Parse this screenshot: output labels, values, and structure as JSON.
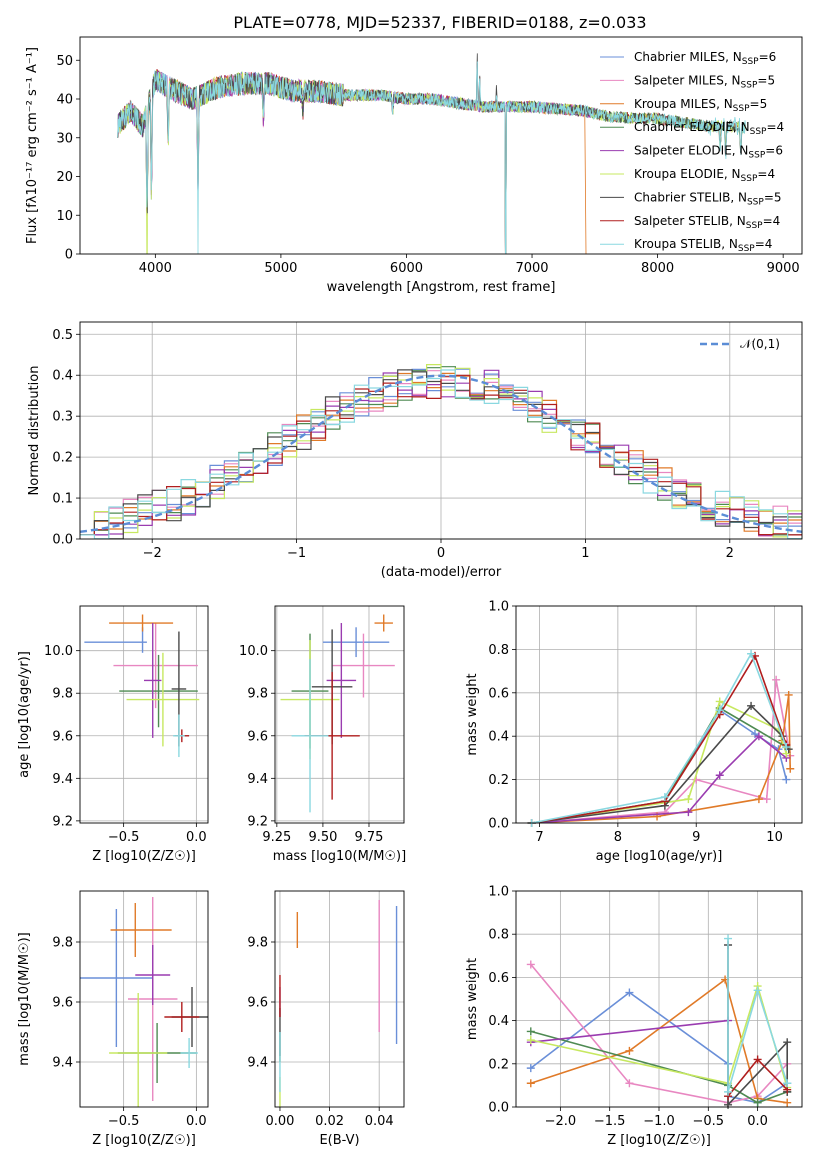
{
  "colors": [
    "#6a8fd8",
    "#e887c1",
    "#e07a28",
    "#4e8a52",
    "#9a3cb0",
    "#c7e860",
    "#4a4a4a",
    "#b01e1e",
    "#8ad8e0"
  ],
  "series_names": [
    "Chabrier MILES",
    "Salpeter MILES",
    "Kroupa MILES",
    "Chabrier ELODIE",
    "Salpeter ELODIE",
    "Kroupa ELODIE",
    "Chabrier STELIB",
    "Salpeter STELIB",
    "Kroupa STELIB"
  ],
  "legend_nssp": [
    "6",
    "5",
    "5",
    "4",
    "6",
    "4",
    "5",
    "4",
    "4"
  ],
  "chart_data": [
    {
      "id": "spectrum",
      "type": "line",
      "title": "PLATE=0778, MJD=52337, FIBERID=0188, z=0.033",
      "xlabel": "wavelength [Angstrom, rest frame]",
      "ylabel": "Flux [fλ10⁻¹⁷ erg cm⁻² s⁻¹ A⁻¹]",
      "xlim": [
        3400,
        9150
      ],
      "ylim": [
        0,
        56
      ],
      "xticks": [
        4000,
        5000,
        6000,
        7000,
        8000,
        9000
      ],
      "yticks": [
        0,
        10,
        20,
        30,
        40,
        50
      ],
      "legend": "upper right",
      "grid": false,
      "continuum": [
        [
          3700,
          33
        ],
        [
          3800,
          37
        ],
        [
          3900,
          33
        ],
        [
          4000,
          45
        ],
        [
          4100,
          43
        ],
        [
          4300,
          40
        ],
        [
          4500,
          43
        ],
        [
          4700,
          44
        ],
        [
          4900,
          44
        ],
        [
          5100,
          42
        ],
        [
          5300,
          42
        ],
        [
          5500,
          41
        ],
        [
          5800,
          41
        ],
        [
          6000,
          40
        ],
        [
          6200,
          40
        ],
        [
          6400,
          39
        ],
        [
          6600,
          38
        ],
        [
          6800,
          38
        ],
        [
          7000,
          38
        ],
        [
          7200,
          37.5
        ],
        [
          7400,
          37
        ],
        [
          7600,
          35.5
        ],
        [
          7800,
          35
        ],
        [
          8000,
          35
        ],
        [
          8200,
          34
        ],
        [
          8400,
          33
        ],
        [
          8600,
          33
        ],
        [
          8700,
          32.5
        ]
      ],
      "absorption_lines": [
        [
          3934,
          30
        ],
        [
          3969,
          28
        ],
        [
          4102,
          15
        ],
        [
          4340,
          25
        ],
        [
          4861,
          10
        ],
        [
          5175,
          5
        ],
        [
          5890,
          4
        ],
        [
          8498,
          6
        ],
        [
          8542,
          8
        ],
        [
          8662,
          7
        ]
      ],
      "emission_lines": [
        [
          6563,
          15
        ],
        [
          6583,
          10
        ],
        [
          6717,
          5
        ]
      ],
      "drops": [
        [
          3934,
          "all"
        ],
        [
          4340,
          "all"
        ],
        [
          6790,
          "all"
        ],
        [
          7420,
          "Kroupa MILES"
        ]
      ]
    },
    {
      "id": "residuals",
      "type": "histogram",
      "xlabel": "(data-model)/error",
      "ylabel": "Normed distribution",
      "xlim": [
        -2.5,
        2.5
      ],
      "ylim": [
        0,
        0.53
      ],
      "xticks": [
        -2,
        -1,
        0,
        1,
        2
      ],
      "yticks": [
        0,
        0.1,
        0.2,
        0.3,
        0.4,
        0.5
      ],
      "grid": true,
      "legend": "upper right",
      "normal_label": "𝒩(0,1)"
    },
    {
      "id": "age_Z",
      "type": "errorbar",
      "xlabel": "Z [log10(Z/Z☉)]",
      "ylabel": "age  [log10(age/yr)]",
      "xlim": [
        -0.8,
        0.08
      ],
      "ylim": [
        9.19,
        10.21
      ],
      "xticks": [
        -0.5,
        0
      ],
      "yticks": [
        9.2,
        9.4,
        9.6,
        9.8,
        10.0
      ],
      "grid": true,
      "points": [
        [
          -0.37,
          10.04,
          0.4,
          0.03,
          0.05,
          0.07
        ],
        [
          -0.28,
          9.93,
          0.29,
          0.29,
          0.2,
          0.2
        ],
        [
          -0.37,
          10.13,
          0.23,
          0.21,
          0.04,
          0.04
        ],
        [
          -0.26,
          9.81,
          0.27,
          0.27,
          0.17,
          0.17
        ],
        [
          -0.3,
          9.86,
          0.06,
          0.06,
          0.27,
          0.27
        ],
        [
          -0.23,
          9.77,
          0.25,
          0.25,
          0.22,
          0.22
        ],
        [
          -0.12,
          9.82,
          0.05,
          0.05,
          0.27,
          0.27
        ],
        [
          -0.1,
          9.6,
          0.05,
          0.05,
          0.03,
          0.03
        ],
        [
          -0.12,
          9.6,
          0.04,
          0.04,
          0.1,
          0.1
        ]
      ]
    },
    {
      "id": "age_mass",
      "type": "errorbar",
      "xlabel": "mass [log10(M/M☉)]",
      "ylabel": "",
      "xlim": [
        9.24,
        9.94
      ],
      "ylim": [
        9.19,
        10.21
      ],
      "xticks": [
        9.25,
        9.5,
        9.75
      ],
      "yticks": [
        9.2,
        9.4,
        9.6,
        9.8,
        10.0
      ],
      "grid": true,
      "points": [
        [
          9.68,
          10.04,
          0.18,
          0.18,
          0.07,
          0.07
        ],
        [
          9.72,
          9.93,
          0.17,
          0.17,
          0.15,
          0.15
        ],
        [
          9.83,
          10.13,
          0.05,
          0.05,
          0.04,
          0.04
        ],
        [
          9.43,
          9.81,
          0.1,
          0.1,
          0.27,
          0.27
        ],
        [
          9.6,
          9.86,
          0.08,
          0.08,
          0.27,
          0.27
        ],
        [
          9.43,
          9.77,
          0.16,
          0.16,
          0.28,
          0.28
        ],
        [
          9.55,
          9.83,
          0.11,
          0.11,
          0.27,
          0.27
        ],
        [
          9.55,
          9.6,
          0.15,
          0.15,
          0.3,
          0.3
        ],
        [
          9.43,
          9.6,
          0.1,
          0.1,
          0.36,
          0.36
        ]
      ]
    },
    {
      "id": "weight_age",
      "type": "line",
      "xlabel": "age  [log10(age/yr)]",
      "ylabel": "mass weight",
      "xlim": [
        6.7,
        10.35
      ],
      "ylim": [
        0,
        1
      ],
      "xticks": [
        7,
        8,
        9,
        10
      ],
      "yticks": [
        0,
        0.2,
        0.4,
        0.6,
        0.8,
        1.0
      ],
      "grid": true,
      "series": [
        [
          [
            6.9,
            0
          ],
          [
            8.6,
            0.1
          ],
          [
            9.3,
            0.52
          ],
          [
            9.75,
            0.41
          ],
          [
            10.05,
            0.34
          ],
          [
            10.15,
            0.2
          ]
        ],
        [
          [
            6.9,
            0
          ],
          [
            8.6,
            0.05
          ],
          [
            9.0,
            0.2
          ],
          [
            9.9,
            0.11
          ],
          [
            10.02,
            0.66
          ],
          [
            10.2,
            0.31
          ]
        ],
        [
          [
            6.9,
            0
          ],
          [
            8.5,
            0.03
          ],
          [
            9.8,
            0.11
          ],
          [
            10.1,
            0.38
          ],
          [
            10.18,
            0.59
          ],
          [
            10.2,
            0.25
          ]
        ],
        [
          [
            6.9,
            0
          ],
          [
            8.6,
            0.1
          ],
          [
            9.3,
            0.53
          ],
          [
            10.15,
            0.35
          ]
        ],
        [
          [
            6.9,
            0
          ],
          [
            8.9,
            0.05
          ],
          [
            9.3,
            0.22
          ],
          [
            9.8,
            0.4
          ],
          [
            10.15,
            0.3
          ]
        ],
        [
          [
            6.9,
            0
          ],
          [
            8.9,
            0.11
          ],
          [
            9.3,
            0.56
          ],
          [
            10.05,
            0.43
          ],
          [
            10.15,
            0.32
          ]
        ],
        [
          [
            6.9,
            0
          ],
          [
            8.6,
            0.08
          ],
          [
            9.7,
            0.54
          ],
          [
            10.1,
            0.4
          ],
          [
            10.18,
            0.34
          ]
        ],
        [
          [
            6.9,
            0
          ],
          [
            8.6,
            0.1
          ],
          [
            9.3,
            0.5
          ],
          [
            9.75,
            0.77
          ],
          [
            10.15,
            0.36
          ]
        ],
        [
          [
            6.9,
            0
          ],
          [
            8.6,
            0.12
          ],
          [
            9.3,
            0.52
          ],
          [
            9.7,
            0.78
          ],
          [
            10.15,
            0.35
          ]
        ]
      ]
    },
    {
      "id": "mass_Z",
      "type": "errorbar",
      "xlabel": "Z [log10(Z/Z☉)]",
      "ylabel": "mass [log10(M/M☉)]",
      "xlim": [
        -0.8,
        0.08
      ],
      "ylim": [
        9.25,
        9.97
      ],
      "xticks": [
        -0.5,
        0
      ],
      "yticks": [
        9.4,
        9.6,
        9.8
      ],
      "grid": true,
      "points": [
        [
          -0.55,
          9.68,
          0.25,
          0.25,
          0.23,
          0.23
        ],
        [
          -0.3,
          9.61,
          0.17,
          0.17,
          0.34,
          0.34
        ],
        [
          -0.42,
          9.84,
          0.17,
          0.25,
          0.09,
          0.09
        ],
        [
          -0.27,
          9.43,
          0.27,
          0.27,
          0.1,
          0.1
        ],
        [
          -0.3,
          9.69,
          0.12,
          0.12,
          0.1,
          0.1
        ],
        [
          -0.4,
          9.43,
          0.2,
          0.2,
          0.2,
          0.2
        ],
        [
          -0.03,
          9.55,
          0.14,
          0.14,
          0.1,
          0.1
        ],
        [
          -0.1,
          9.55,
          0.12,
          0.12,
          0.05,
          0.05
        ],
        [
          -0.05,
          9.43,
          0.06,
          0.06,
          0.05,
          0.05
        ]
      ]
    },
    {
      "id": "mass_ebv",
      "type": "errorbar",
      "xlabel": "E(B-V)",
      "ylabel": "",
      "xlim": [
        -0.002,
        0.05
      ],
      "ylim": [
        9.25,
        9.97
      ],
      "xticks": [
        0.0,
        0.02,
        0.04
      ],
      "yticks": [
        9.4,
        9.6,
        9.8
      ],
      "grid": true,
      "points": [
        [
          0.047,
          9.69,
          0,
          0,
          0.23,
          0.23
        ],
        [
          0.04,
          9.72,
          0,
          0,
          0.22,
          0.22
        ],
        [
          0.007,
          9.84,
          0,
          0,
          0.06,
          0.06
        ],
        [
          0.0,
          9.45,
          0,
          0,
          0.05,
          0.05
        ],
        [
          0.0,
          9.6,
          0,
          0,
          0.05,
          0.05
        ],
        [
          0.0,
          9.3,
          0,
          0,
          0.05,
          0.05
        ],
        [
          0.0,
          9.5,
          0,
          0,
          0.08,
          0.08
        ],
        [
          0.0,
          9.62,
          0,
          0,
          0.07,
          0.07
        ],
        [
          0.0,
          9.4,
          0,
          0,
          0.1,
          0.1
        ]
      ]
    },
    {
      "id": "weight_Z",
      "type": "line",
      "xlabel": "Z [log10(Z/Z☉)]",
      "ylabel": "mass weight",
      "xlim": [
        -2.45,
        0.45
      ],
      "ylim": [
        0,
        1
      ],
      "xticks": [
        -2.0,
        -1.5,
        -1.0,
        -0.5,
        0.0
      ],
      "yticks": [
        0,
        0.2,
        0.4,
        0.6,
        0.8,
        1.0
      ],
      "grid": true,
      "series": [
        [
          [
            -2.3,
            0.18
          ],
          [
            -1.3,
            0.53
          ],
          [
            -0.3,
            0.2
          ],
          [
            -0.3,
            0.05
          ],
          [
            0.0,
            0.02
          ],
          [
            0.3,
            0.11
          ]
        ],
        [
          [
            -2.3,
            0.66
          ],
          [
            -1.3,
            0.11
          ],
          [
            -0.3,
            0.02
          ],
          [
            0.0,
            0.05
          ],
          [
            0.3,
            0.2
          ]
        ],
        [
          [
            -2.3,
            0.11
          ],
          [
            -1.3,
            0.26
          ],
          [
            -0.33,
            0.59
          ],
          [
            0.0,
            0.04
          ],
          [
            0.3,
            0.02
          ]
        ],
        [
          [
            -2.3,
            0.35
          ],
          [
            -0.3,
            0.1
          ],
          [
            0.0,
            0.02
          ],
          [
            0.3,
            0.07
          ]
        ],
        [
          [
            -2.3,
            0.3
          ],
          [
            -0.3,
            0.4
          ]
        ],
        [
          [
            -2.3,
            0.31
          ],
          [
            -0.3,
            0.11
          ],
          [
            0.0,
            0.56
          ],
          [
            0.3,
            0.09
          ]
        ],
        [
          [
            -0.3,
            0.75
          ],
          [
            -0.3,
            0.01
          ],
          [
            0.3,
            0.3
          ],
          [
            0.3,
            0.07
          ]
        ],
        [
          [
            -0.3,
            0.05
          ],
          [
            0.0,
            0.22
          ],
          [
            0.3,
            0.08
          ]
        ],
        [
          [
            -0.3,
            0.78
          ],
          [
            -0.3,
            0.07
          ],
          [
            0.0,
            0.54
          ],
          [
            0.3,
            0.11
          ]
        ]
      ]
    }
  ]
}
